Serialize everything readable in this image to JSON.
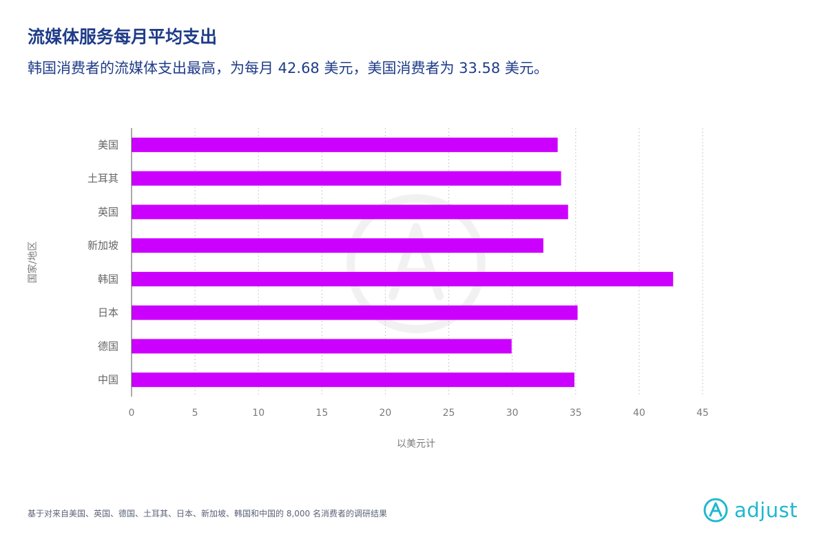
{
  "header": {
    "title": "流媒体服务每月平均支出",
    "subtitle": "韩国消费者的流媒体支出最高，为每月 42.68 美元，美国消费者为 33.58 美元。"
  },
  "chart_data": {
    "type": "bar",
    "orientation": "horizontal",
    "categories": [
      "美国",
      "土耳其",
      "英国",
      "新加坡",
      "韩国",
      "日本",
      "德国",
      "中国"
    ],
    "values": [
      33.58,
      33.85,
      34.4,
      32.45,
      42.68,
      35.15,
      29.95,
      34.9
    ],
    "xlabel": "以美元计",
    "ylabel": "国家/地区",
    "xticks": [
      "0",
      "5",
      "10",
      "15",
      "20",
      "25",
      "30",
      "35",
      "40",
      "45"
    ],
    "xlim": [
      0,
      45
    ],
    "grid": "vertical dotted",
    "bar_color": "#cc00ff"
  },
  "footer": {
    "note": "基于对来自美国、英国、德国、土耳其、日本、新加坡、韩国和中国的 8,000 名消费者的调研结果",
    "logo_text": "adjust",
    "logo_color": "#1fb8cf"
  }
}
